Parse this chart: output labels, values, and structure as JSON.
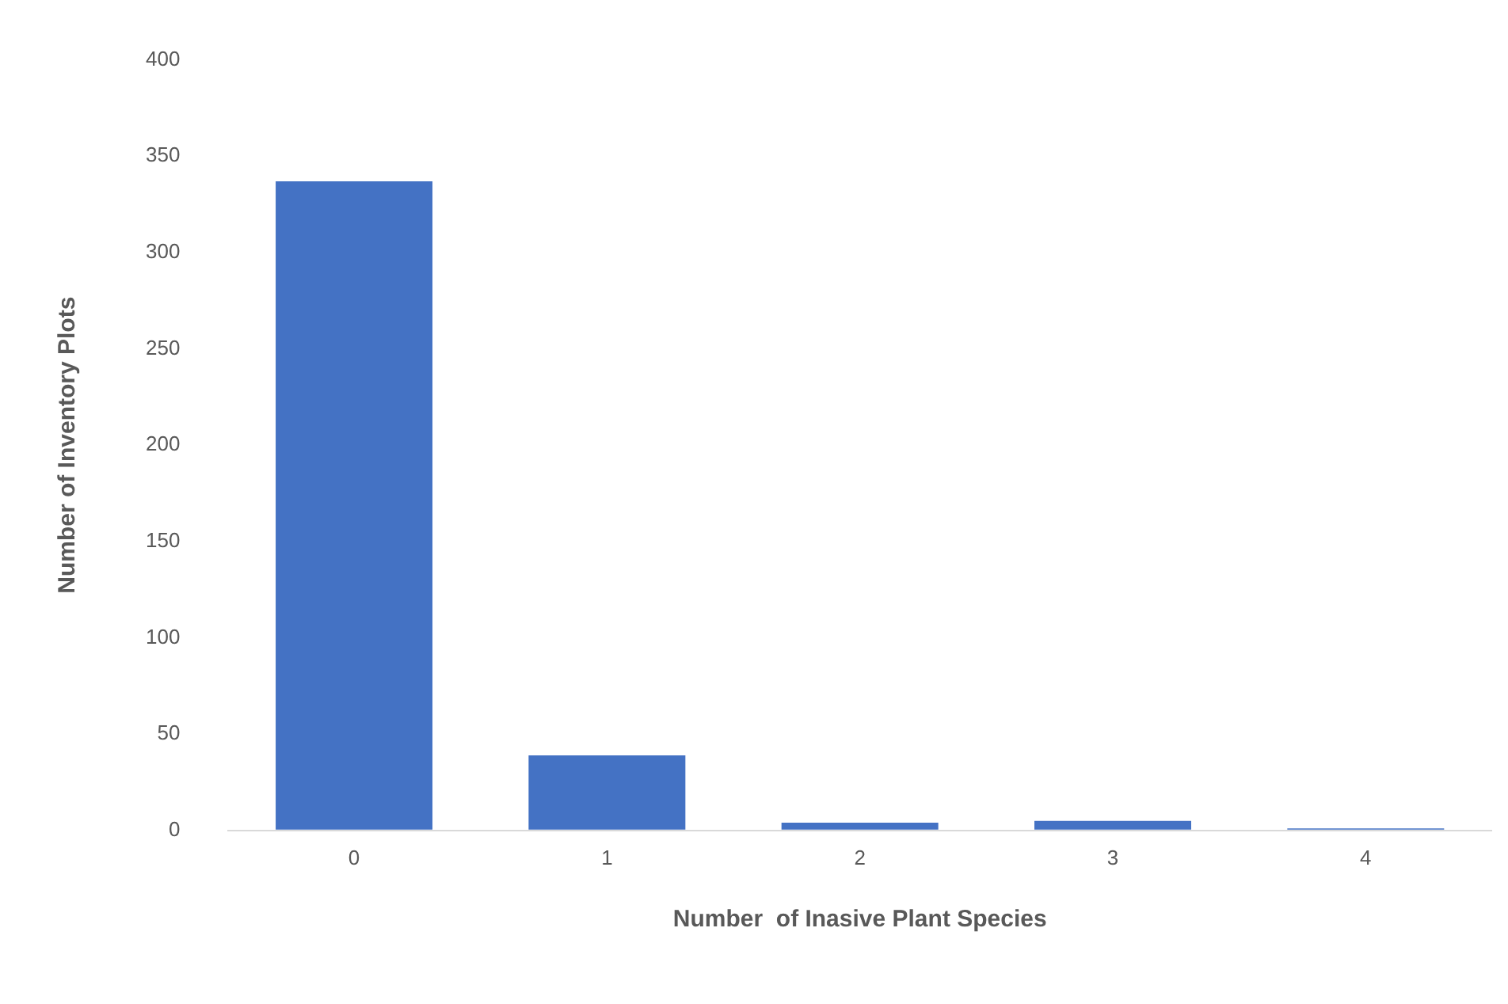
{
  "chart_data": {
    "type": "bar",
    "xlabel": "Number  of Inasive Plant Species",
    "ylabel": "Number of Inventory Plots",
    "categories": [
      "0",
      "1",
      "2",
      "3",
      "4"
    ],
    "values": [
      337,
      39,
      4,
      5,
      1
    ],
    "color": "#4472c4",
    "ylim": [
      0,
      400
    ],
    "yticks": [
      0,
      50,
      100,
      150,
      200,
      250,
      300,
      350,
      400
    ],
    "grid": false,
    "legend": false
  }
}
